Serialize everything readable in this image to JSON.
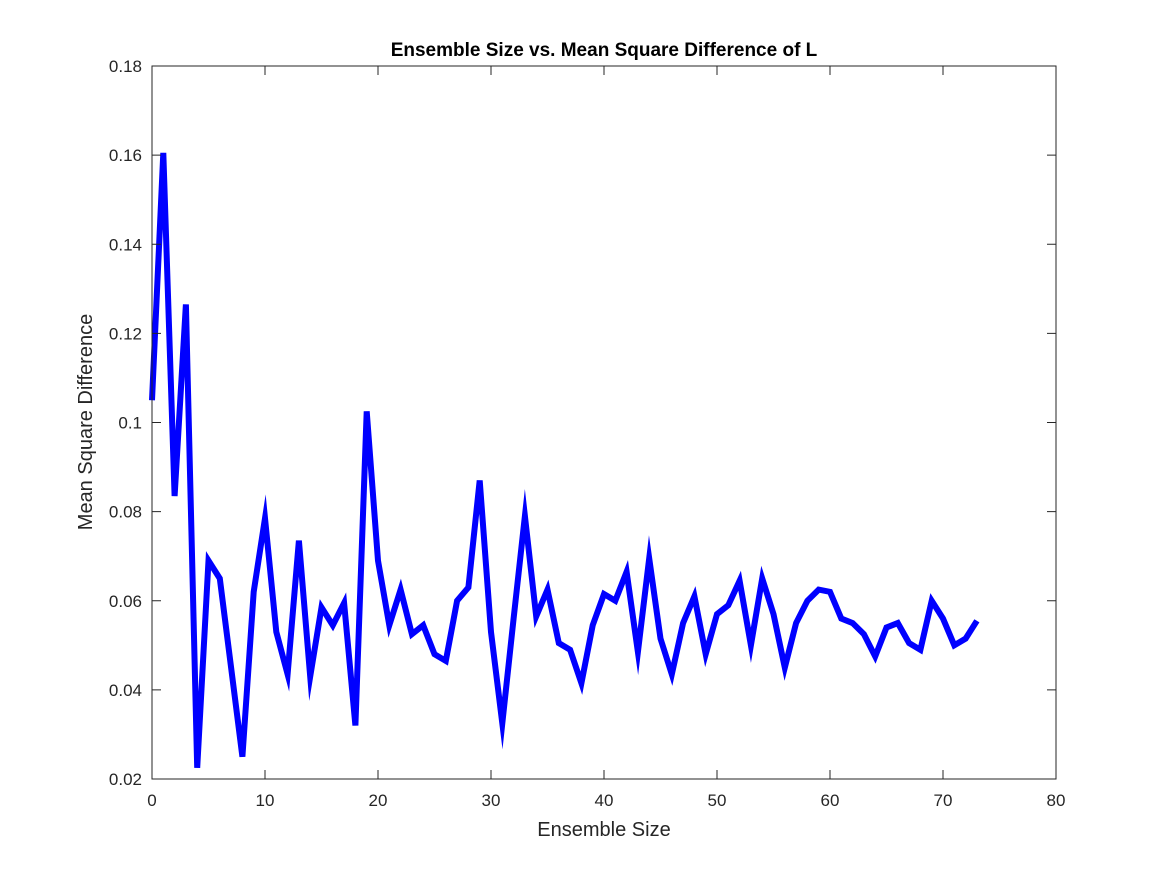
{
  "chart_data": {
    "type": "line",
    "title": "Ensemble Size vs. Mean Square Difference of L",
    "xlabel": "Ensemble Size",
    "ylabel": "Mean Square Difference",
    "xlim": [
      0,
      80
    ],
    "ylim": [
      0.02,
      0.18
    ],
    "xticks": [
      "0",
      "10",
      "20",
      "30",
      "40",
      "50",
      "60",
      "70",
      "80"
    ],
    "yticks": [
      "0.02",
      "0.04",
      "0.06",
      "0.08",
      "0.1",
      "0.12",
      "0.14",
      "0.16",
      "0.18"
    ],
    "grid": false,
    "line_color": "#0000ff",
    "series": [
      {
        "x": [
          0,
          1,
          2,
          3,
          4,
          5,
          6,
          7,
          8,
          9,
          10,
          11,
          12,
          13,
          14,
          15,
          16,
          17,
          18,
          19,
          20,
          21,
          22,
          23,
          24,
          25,
          26,
          27,
          28,
          29,
          30,
          31,
          32,
          33,
          34,
          35,
          36,
          37,
          38,
          39,
          40,
          41,
          42,
          43,
          44,
          45,
          46,
          47,
          48,
          49,
          50,
          51,
          52,
          53,
          54,
          55,
          56,
          57,
          58,
          59,
          60,
          61,
          62,
          63,
          64,
          65,
          66,
          67,
          68,
          69,
          70,
          71,
          72,
          73
        ],
        "values": [
          0.105,
          0.1605,
          0.0835,
          0.1265,
          0.0225,
          0.069,
          0.065,
          0.045,
          0.025,
          0.062,
          0.0785,
          0.053,
          0.0435,
          0.0735,
          0.043,
          0.0585,
          0.0545,
          0.0595,
          0.032,
          0.1025,
          0.069,
          0.0545,
          0.0625,
          0.0525,
          0.0545,
          0.048,
          0.0465,
          0.06,
          0.063,
          0.087,
          0.053,
          0.0325,
          0.056,
          0.079,
          0.0565,
          0.0625,
          0.0505,
          0.049,
          0.0415,
          0.0545,
          0.0615,
          0.06,
          0.0665,
          0.0485,
          0.0695,
          0.0515,
          0.0435,
          0.055,
          0.061,
          0.048,
          0.057,
          0.059,
          0.0645,
          0.05,
          0.065,
          0.057,
          0.045,
          0.055,
          0.06,
          0.0625,
          0.062,
          0.056,
          0.055,
          0.0525,
          0.0475,
          0.054,
          0.055,
          0.0505,
          0.049,
          0.06,
          0.056,
          0.05,
          0.0515,
          0.0555
        ]
      }
    ]
  }
}
